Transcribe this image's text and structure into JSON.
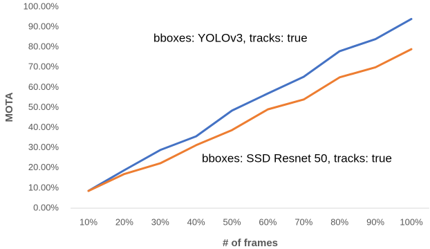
{
  "chart_data": {
    "type": "line",
    "y_label": "MOTA",
    "x_label": "# of frames",
    "categories": [
      "10%",
      "20%",
      "30%",
      "40%",
      "50%",
      "60%",
      "70%",
      "80%",
      "90%",
      "100%"
    ],
    "series": [
      {
        "name": "bboxes: YOLOv3, tracks: true",
        "color": "#4472c4",
        "values": [
          8.6,
          18.9,
          28.9,
          35.7,
          48.5,
          57,
          65.3,
          78,
          84,
          94
        ]
      },
      {
        "name": "bboxes: SSD Resnet 50, tracks: true",
        "color": "#ed7d31",
        "values": [
          8.6,
          17,
          22.3,
          31.3,
          38.8,
          49.1,
          54,
          65,
          70,
          79
        ]
      }
    ],
    "ylim": [
      0,
      100
    ],
    "yticks": [
      {
        "value": 0,
        "label": "0.00%"
      },
      {
        "value": 10,
        "label": "10.00%"
      },
      {
        "value": 20,
        "label": "20.00%"
      },
      {
        "value": 30,
        "label": "30.00%"
      },
      {
        "value": 40,
        "label": "40.00%"
      },
      {
        "value": 50,
        "label": "50.00%"
      },
      {
        "value": 60,
        "label": "60.00%"
      },
      {
        "value": 70,
        "label": "70.00%"
      },
      {
        "value": 80,
        "label": "80.00%"
      },
      {
        "value": 90,
        "label": "90.00%"
      },
      {
        "value": 100,
        "label": "100.00%"
      }
    ],
    "grid": false
  }
}
